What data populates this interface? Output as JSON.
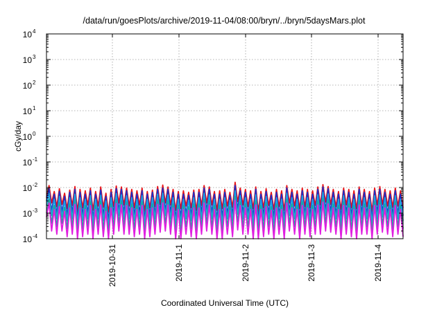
{
  "chart_data": {
    "type": "line",
    "title": "/data/run/goesPlots/archive/2019-11-04/08:00/bryn/../bryn/5daysMars.plot",
    "xlabel": "Coordinated Universal Time (UTC)",
    "ylabel": "cGy/day",
    "yscale": "log",
    "ylim": [
      0.0001,
      10000
    ],
    "xlim": [
      "2019-10-30 07:45",
      "2019-11-04 08:00"
    ],
    "grid": true,
    "legend": "none",
    "x_ticks": [
      "2019-10-31",
      "2019-11-1",
      "2019-11-2",
      "2019-11-3",
      "2019-11-4"
    ],
    "y_ticks": [
      {
        "value": 0.0001,
        "base": "10",
        "exp": "-4"
      },
      {
        "value": 0.001,
        "base": "10",
        "exp": "-3"
      },
      {
        "value": 0.01,
        "base": "10",
        "exp": "-2"
      },
      {
        "value": 0.1,
        "base": "10",
        "exp": "-1"
      },
      {
        "value": 1,
        "base": "10",
        "exp": "0"
      },
      {
        "value": 10,
        "base": "10",
        "exp": "1"
      },
      {
        "value": 100,
        "base": "10",
        "exp": "2"
      },
      {
        "value": 1000,
        "base": "10",
        "exp": "3"
      },
      {
        "value": 10000,
        "base": "10",
        "exp": "4"
      }
    ],
    "series": [
      {
        "color": "#e8161a",
        "values": [
          0.004,
          0.012,
          0.0025,
          0.007,
          0.0018,
          0.009,
          0.0022,
          0.006,
          0.0015,
          0.008,
          0.002,
          0.011,
          0.0012,
          0.0085,
          0.0016,
          0.0075,
          0.0021,
          0.0095,
          0.0013,
          0.007,
          0.0019,
          0.0105,
          0.0017,
          0.006,
          0.0011,
          0.0085,
          0.0018,
          0.0115,
          0.0025,
          0.0105,
          0.0021,
          0.0095,
          0.0019,
          0.0085,
          0.0016,
          0.0075,
          0.0021,
          0.0095,
          0.0012,
          0.007,
          0.0016,
          0.008,
          0.0018,
          0.011,
          0.0022,
          0.0125,
          0.0025,
          0.0105,
          0.0021,
          0.0085,
          0.0013,
          0.007,
          0.0015,
          0.0075,
          0.0019,
          0.0065,
          0.0016,
          0.008,
          0.0013,
          0.0085,
          0.002,
          0.012,
          0.0025,
          0.0105,
          0.0021,
          0.007,
          0.0013,
          0.0075,
          0.0015,
          0.0085,
          0.0019,
          0.0065,
          0.0017,
          0.016,
          0.0028,
          0.0095,
          0.0021,
          0.0085,
          0.0018,
          0.0075,
          0.0015,
          0.0105,
          0.0012,
          0.007,
          0.0016,
          0.009,
          0.002,
          0.0065,
          0.0014,
          0.0085,
          0.0018,
          0.0075,
          0.0013,
          0.012,
          0.0025,
          0.0085,
          0.0019,
          0.0075,
          0.0015,
          0.0095,
          0.0018,
          0.0085,
          0.0016,
          0.0075,
          0.002,
          0.0105,
          0.0021,
          0.013,
          0.0027,
          0.011,
          0.0022,
          0.0085,
          0.0018,
          0.007,
          0.0014,
          0.0095,
          0.0021,
          0.0085,
          0.0016,
          0.0075,
          0.0015,
          0.0105,
          0.002,
          0.0085,
          0.0018,
          0.007,
          0.0012,
          0.0095,
          0.0021,
          0.011,
          0.0022,
          0.0085,
          0.0019,
          0.0075,
          0.0017,
          0.0095,
          0.0019,
          0.0075,
          0.0016
        ]
      },
      {
        "color": "#1e2fc8",
        "values": [
          0.003,
          0.009,
          0.0012,
          0.0055,
          0.0009,
          0.007,
          0.0011,
          0.0045,
          0.0008,
          0.0065,
          0.001,
          0.0085,
          0.0006,
          0.0065,
          0.0008,
          0.0055,
          0.001,
          0.0075,
          0.0006,
          0.0055,
          0.0009,
          0.008,
          0.0008,
          0.0045,
          0.0005,
          0.0065,
          0.0009,
          0.009,
          0.0012,
          0.0085,
          0.001,
          0.0075,
          0.0009,
          0.0065,
          0.0008,
          0.0055,
          0.001,
          0.0075,
          0.0006,
          0.0055,
          0.0008,
          0.0065,
          0.0009,
          0.0085,
          0.0011,
          0.0095,
          0.0012,
          0.0085,
          0.001,
          0.0065,
          0.0006,
          0.0055,
          0.0007,
          0.0055,
          0.0009,
          0.005,
          0.0008,
          0.0065,
          0.0006,
          0.0065,
          0.001,
          0.0095,
          0.0012,
          0.0085,
          0.001,
          0.0055,
          0.0006,
          0.0055,
          0.0007,
          0.0065,
          0.0009,
          0.005,
          0.0008,
          0.012,
          0.0014,
          0.0075,
          0.001,
          0.0065,
          0.0009,
          0.0055,
          0.0007,
          0.0085,
          0.0006,
          0.0055,
          0.0008,
          0.007,
          0.001,
          0.005,
          0.0007,
          0.0065,
          0.0009,
          0.0055,
          0.0006,
          0.0095,
          0.0012,
          0.0065,
          0.0009,
          0.0055,
          0.0007,
          0.0075,
          0.0009,
          0.0065,
          0.0008,
          0.0055,
          0.001,
          0.0085,
          0.001,
          0.0105,
          0.0013,
          0.009,
          0.0011,
          0.0065,
          0.0009,
          0.0055,
          0.0007,
          0.0075,
          0.001,
          0.0065,
          0.0008,
          0.0055,
          0.0007,
          0.0085,
          0.001,
          0.0065,
          0.0009,
          0.0055,
          0.0006,
          0.0075,
          0.001,
          0.0085,
          0.0011,
          0.0065,
          0.0009,
          0.0055,
          0.0008,
          0.0075,
          0.0009,
          0.0055,
          0.0008
        ]
      },
      {
        "color": "#1fa3e0",
        "values": [
          0.002,
          0.006,
          0.0008,
          0.0035,
          0.0006,
          0.0045,
          0.0007,
          0.003,
          0.0005,
          0.004,
          0.0006,
          0.0055,
          0.0004,
          0.004,
          0.0005,
          0.0035,
          0.0006,
          0.0048,
          0.0004,
          0.0035,
          0.0006,
          0.005,
          0.0005,
          0.003,
          0.0003,
          0.004,
          0.0006,
          0.0058,
          0.0008,
          0.0052,
          0.0006,
          0.0048,
          0.0006,
          0.004,
          0.0005,
          0.0035,
          0.0006,
          0.0048,
          0.0004,
          0.0035,
          0.0005,
          0.004,
          0.0006,
          0.0055,
          0.0007,
          0.006,
          0.0008,
          0.0052,
          0.0006,
          0.004,
          0.0004,
          0.0035,
          0.0004,
          0.0035,
          0.0006,
          0.0032,
          0.0005,
          0.004,
          0.0004,
          0.004,
          0.0006,
          0.006,
          0.0008,
          0.0052,
          0.0006,
          0.0035,
          0.0004,
          0.0035,
          0.0004,
          0.004,
          0.0006,
          0.0032,
          0.0005,
          0.0075,
          0.0009,
          0.0048,
          0.0006,
          0.004,
          0.0006,
          0.0035,
          0.0004,
          0.0052,
          0.0004,
          0.0035,
          0.0005,
          0.0045,
          0.0006,
          0.0032,
          0.0004,
          0.004,
          0.0006,
          0.0035,
          0.0004,
          0.006,
          0.0008,
          0.004,
          0.0006,
          0.0035,
          0.0004,
          0.0048,
          0.0006,
          0.004,
          0.0005,
          0.0035,
          0.0006,
          0.0052,
          0.0006,
          0.0065,
          0.0008,
          0.0056,
          0.0007,
          0.004,
          0.0006,
          0.0035,
          0.0004,
          0.0048,
          0.0006,
          0.004,
          0.0005,
          0.0035,
          0.0004,
          0.0052,
          0.0006,
          0.004,
          0.0006,
          0.0035,
          0.0004,
          0.0048,
          0.0006,
          0.0052,
          0.0007,
          0.004,
          0.0006,
          0.0035,
          0.0005,
          0.0048,
          0.0006,
          0.0035,
          0.0005
        ]
      },
      {
        "color": "#1aa89a",
        "values": [
          0.001,
          0.0035,
          0.0004,
          0.002,
          0.0003,
          0.0026,
          0.0004,
          0.0017,
          0.00025,
          0.0023,
          0.0003,
          0.0032,
          0.0002,
          0.0023,
          0.00025,
          0.002,
          0.0003,
          0.0028,
          0.0002,
          0.002,
          0.0003,
          0.0029,
          0.00025,
          0.0017,
          0.00018,
          0.0023,
          0.0003,
          0.0034,
          0.0004,
          0.003,
          0.0003,
          0.0028,
          0.0003,
          0.0023,
          0.00025,
          0.002,
          0.0003,
          0.0028,
          0.0002,
          0.002,
          0.00025,
          0.0023,
          0.0003,
          0.0032,
          0.00035,
          0.0035,
          0.0004,
          0.003,
          0.0003,
          0.0023,
          0.0002,
          0.002,
          0.0002,
          0.002,
          0.0003,
          0.0018,
          0.00025,
          0.0023,
          0.0002,
          0.0023,
          0.0003,
          0.0035,
          0.0004,
          0.003,
          0.0003,
          0.002,
          0.0002,
          0.002,
          0.0002,
          0.0023,
          0.0003,
          0.0018,
          0.00025,
          0.0045,
          0.00045,
          0.0028,
          0.0003,
          0.0023,
          0.0003,
          0.002,
          0.0002,
          0.003,
          0.0002,
          0.002,
          0.00025,
          0.0026,
          0.0003,
          0.0018,
          0.0002,
          0.0023,
          0.0003,
          0.002,
          0.0002,
          0.0035,
          0.0004,
          0.0023,
          0.0003,
          0.002,
          0.0002,
          0.0028,
          0.0003,
          0.0023,
          0.00025,
          0.002,
          0.0003,
          0.003,
          0.0003,
          0.0038,
          0.0004,
          0.0033,
          0.00035,
          0.0023,
          0.0003,
          0.002,
          0.0002,
          0.0028,
          0.0003,
          0.0023,
          0.00025,
          0.002,
          0.0002,
          0.003,
          0.0003,
          0.0023,
          0.0003,
          0.002,
          0.0002,
          0.0028,
          0.0003,
          0.003,
          0.00035,
          0.0023,
          0.0003,
          0.002,
          0.00025,
          0.0028,
          0.0003,
          0.002,
          0.00025
        ]
      },
      {
        "color": "#e01ee0",
        "values": [
          0.0007,
          0.0025,
          0.0002,
          0.0014,
          0.00015,
          0.0018,
          0.0002,
          0.0012,
          0.00012,
          0.0016,
          0.00015,
          0.0022,
          0.0001,
          0.0016,
          0.00012,
          0.0014,
          0.00015,
          0.002,
          0.0001,
          0.0014,
          0.00015,
          0.0021,
          0.00012,
          0.0012,
          0.0001,
          0.0016,
          0.00015,
          0.0024,
          0.0002,
          0.0021,
          0.00015,
          0.002,
          0.00015,
          0.0016,
          0.00012,
          0.0014,
          0.00015,
          0.002,
          0.0001,
          0.0014,
          0.00012,
          0.0016,
          0.00015,
          0.0022,
          0.00018,
          0.0025,
          0.0002,
          0.0021,
          0.00015,
          0.0016,
          0.0001,
          0.0014,
          0.0001,
          0.0014,
          0.00015,
          0.0013,
          0.00012,
          0.0016,
          0.0001,
          0.0016,
          0.00015,
          0.0025,
          0.0002,
          0.0021,
          0.00015,
          0.0014,
          0.0001,
          0.0014,
          0.0001,
          0.0016,
          0.00015,
          0.0013,
          0.00012,
          0.0032,
          0.00022,
          0.002,
          0.00015,
          0.0016,
          0.00015,
          0.0014,
          0.0001,
          0.0021,
          0.0001,
          0.0014,
          0.00012,
          0.0018,
          0.00015,
          0.0013,
          0.0001,
          0.0016,
          0.00015,
          0.0014,
          0.0001,
          0.0025,
          0.0002,
          0.0016,
          0.00015,
          0.0014,
          0.0001,
          0.002,
          0.00015,
          0.0016,
          0.00012,
          0.0014,
          0.00015,
          0.0021,
          0.00015,
          0.0027,
          0.0002,
          0.0023,
          0.00018,
          0.0016,
          0.00015,
          0.0014,
          0.0001,
          0.002,
          0.00015,
          0.0016,
          0.00012,
          0.0014,
          0.0001,
          0.0021,
          0.00015,
          0.0016,
          0.00015,
          0.0014,
          0.0001,
          0.002,
          0.00015,
          0.0021,
          0.00018,
          0.0016,
          0.00015,
          0.0014,
          0.00012,
          0.002,
          0.00015,
          0.0014,
          0.00012
        ]
      }
    ]
  }
}
